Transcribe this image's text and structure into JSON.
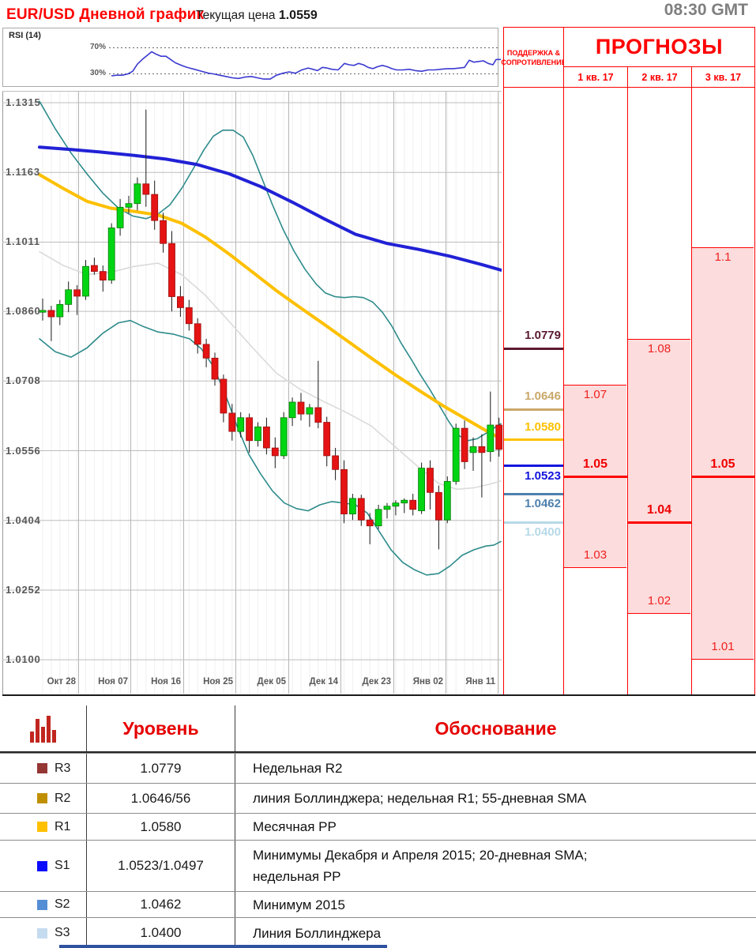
{
  "header": {
    "title": "EUR/USD Дневной график",
    "price_label": "Текущая цена",
    "price_value": "1.0559",
    "time": "08:30 GMT"
  },
  "rsi": {
    "label": "RSI (14)",
    "upper": "70%",
    "lower": "30%",
    "upper_value": 70,
    "lower_value": 30,
    "series": [
      [
        141,
        27
      ],
      [
        148,
        28
      ],
      [
        155,
        28
      ],
      [
        162,
        30
      ],
      [
        168,
        34
      ],
      [
        174,
        45
      ],
      [
        180,
        52
      ],
      [
        186,
        58
      ],
      [
        192,
        64
      ],
      [
        198,
        60
      ],
      [
        204,
        57
      ],
      [
        210,
        57
      ],
      [
        216,
        52
      ],
      [
        222,
        47
      ],
      [
        228,
        44
      ],
      [
        234,
        41
      ],
      [
        240,
        39
      ],
      [
        246,
        37
      ],
      [
        252,
        35
      ],
      [
        258,
        33
      ],
      [
        264,
        31
      ],
      [
        270,
        30
      ],
      [
        278,
        28
      ],
      [
        286,
        26
      ],
      [
        294,
        24
      ],
      [
        302,
        23
      ],
      [
        310,
        25
      ],
      [
        318,
        26
      ],
      [
        326,
        24
      ],
      [
        334,
        22
      ],
      [
        342,
        22
      ],
      [
        350,
        28
      ],
      [
        358,
        31
      ],
      [
        366,
        33
      ],
      [
        374,
        31
      ],
      [
        382,
        36
      ],
      [
        390,
        39
      ],
      [
        396,
        37
      ],
      [
        402,
        35
      ],
      [
        408,
        40
      ],
      [
        414,
        39
      ],
      [
        420,
        37
      ],
      [
        428,
        36
      ],
      [
        436,
        46
      ],
      [
        442,
        44
      ],
      [
        448,
        43
      ],
      [
        454,
        46
      ],
      [
        460,
        44
      ],
      [
        466,
        40
      ],
      [
        472,
        38
      ],
      [
        478,
        41
      ],
      [
        484,
        43
      ],
      [
        490,
        41
      ],
      [
        496,
        38
      ],
      [
        502,
        36
      ],
      [
        510,
        36
      ],
      [
        518,
        37
      ],
      [
        526,
        35
      ],
      [
        534,
        34
      ],
      [
        542,
        36
      ],
      [
        550,
        36
      ],
      [
        558,
        37
      ],
      [
        566,
        38
      ],
      [
        574,
        38
      ],
      [
        582,
        39
      ],
      [
        588,
        40
      ],
      [
        594,
        51
      ],
      [
        600,
        48
      ],
      [
        606,
        49
      ],
      [
        612,
        50
      ],
      [
        618,
        46
      ],
      [
        624,
        44
      ],
      [
        628,
        52
      ],
      [
        634,
        52
      ]
    ]
  },
  "chart_data": {
    "type": "candlestick",
    "title": "EUR/USD Дневной график",
    "ylim": [
      1.01,
      1.1315
    ],
    "y_ticks": [
      "1.1315",
      "1.1163",
      "1.1011",
      "1.0860",
      "1.0708",
      "1.0556",
      "1.0404",
      "1.0252",
      "1.0100"
    ],
    "x_ticks": [
      "Окт 28",
      "Ноя 07",
      "Ноя 16",
      "Ноя 25",
      "Дек 05",
      "Дек 14",
      "Дек 23",
      "Янв 02",
      "Янв 11"
    ],
    "candles": [
      [
        1.0858,
        1.0888,
        1.084,
        1.0862
      ],
      [
        1.0862,
        1.0872,
        1.0795,
        1.0848
      ],
      [
        1.0848,
        1.0885,
        1.083,
        1.0875
      ],
      [
        1.0875,
        1.0925,
        1.0858,
        1.0907
      ],
      [
        1.0907,
        1.0917,
        1.0852,
        1.0893
      ],
      [
        1.0893,
        1.0972,
        1.0885,
        1.0958
      ],
      [
        1.096,
        1.0977,
        1.094,
        1.0947
      ],
      [
        1.0947,
        1.096,
        1.0903,
        1.0928
      ],
      [
        1.0928,
        1.1052,
        1.092,
        1.1042
      ],
      [
        1.1042,
        1.1105,
        1.1025,
        1.1087
      ],
      [
        1.1087,
        1.1112,
        1.1073,
        1.1095
      ],
      [
        1.1095,
        1.1152,
        1.108,
        1.1138
      ],
      [
        1.1138,
        1.13,
        1.1088,
        1.1115
      ],
      [
        1.1115,
        1.1145,
        1.1038,
        1.1058
      ],
      [
        1.1058,
        1.1075,
        1.0988,
        1.1008
      ],
      [
        1.1008,
        1.1035,
        1.086,
        1.0892
      ],
      [
        1.0892,
        1.0915,
        1.0848,
        1.0868
      ],
      [
        1.0868,
        1.0885,
        1.0818,
        1.0833
      ],
      [
        1.0833,
        1.0845,
        1.0768,
        1.0788
      ],
      [
        1.0788,
        1.08,
        1.0738,
        1.0758
      ],
      [
        1.0758,
        1.077,
        1.0698,
        1.0712
      ],
      [
        1.0712,
        1.0722,
        1.0618,
        1.0638
      ],
      [
        1.0638,
        1.0658,
        1.0578,
        1.0598
      ],
      [
        1.0598,
        1.064,
        1.0585,
        1.0628
      ],
      [
        1.0628,
        1.0637,
        1.0552,
        1.0578
      ],
      [
        1.0578,
        1.0618,
        1.0565,
        1.0608
      ],
      [
        1.0608,
        1.0628,
        1.0548,
        1.0562
      ],
      [
        1.0562,
        1.0585,
        1.0518,
        1.0545
      ],
      [
        1.0545,
        1.064,
        1.0538,
        1.0628
      ],
      [
        1.0628,
        1.0672,
        1.061,
        1.0662
      ],
      [
        1.0662,
        1.0682,
        1.0622,
        1.0636
      ],
      [
        1.0636,
        1.0658,
        1.0608,
        1.065
      ],
      [
        1.065,
        1.0752,
        1.0605,
        1.0618
      ],
      [
        1.0618,
        1.063,
        1.0522,
        1.0545
      ],
      [
        1.0545,
        1.0562,
        1.0492,
        1.0515
      ],
      [
        1.0515,
        1.0535,
        1.0398,
        1.0418
      ],
      [
        1.0418,
        1.0462,
        1.0405,
        1.0452
      ],
      [
        1.0452,
        1.046,
        1.0392,
        1.0405
      ],
      [
        1.0405,
        1.042,
        1.0352,
        1.0392
      ],
      [
        1.0392,
        1.0438,
        1.0385,
        1.0428
      ],
      [
        1.0428,
        1.0442,
        1.0408,
        1.0435
      ],
      [
        1.0435,
        1.0448,
        1.0415,
        1.0442
      ],
      [
        1.0442,
        1.0452,
        1.042,
        1.0448
      ],
      [
        1.0448,
        1.0462,
        1.0415,
        1.0428
      ],
      [
        1.0425,
        1.053,
        1.0418,
        1.0518
      ],
      [
        1.0518,
        1.0535,
        1.0428,
        1.0465
      ],
      [
        1.0465,
        1.048,
        1.0341,
        1.0405
      ],
      [
        1.0405,
        1.05,
        1.0398,
        1.0489
      ],
      [
        1.0489,
        1.0615,
        1.0482,
        1.0605
      ],
      [
        1.0605,
        1.0622,
        1.0516,
        1.0532
      ],
      [
        1.0552,
        1.0585,
        1.0512,
        1.0565
      ],
      [
        1.0565,
        1.0592,
        1.0454,
        1.0552
      ],
      [
        1.0554,
        1.0685,
        1.0532,
        1.0612
      ],
      [
        1.0612,
        1.0628,
        1.0543,
        1.0559
      ]
    ],
    "overlays": {
      "sma_blue": [
        [
          50,
          1.1218
        ],
        [
          90,
          1.1213
        ],
        [
          130,
          1.1207
        ],
        [
          170,
          1.12
        ],
        [
          210,
          1.1192
        ],
        [
          250,
          1.118
        ],
        [
          290,
          1.116
        ],
        [
          330,
          1.1132
        ],
        [
          370,
          1.1098
        ],
        [
          410,
          1.1062
        ],
        [
          450,
          1.1028
        ],
        [
          490,
          1.1008
        ],
        [
          530,
          1.0995
        ],
        [
          570,
          1.098
        ],
        [
          610,
          1.0962
        ],
        [
          634,
          1.095
        ]
      ],
      "sma_yellow": [
        [
          50,
          1.1158
        ],
        [
          80,
          1.1128
        ],
        [
          110,
          1.11
        ],
        [
          140,
          1.1085
        ],
        [
          170,
          1.1078
        ],
        [
          200,
          1.107
        ],
        [
          230,
          1.1052
        ],
        [
          260,
          1.1022
        ],
        [
          290,
          1.0985
        ],
        [
          320,
          1.0945
        ],
        [
          350,
          1.0905
        ],
        [
          380,
          1.0868
        ],
        [
          410,
          1.0832
        ],
        [
          440,
          1.0795
        ],
        [
          470,
          1.0758
        ],
        [
          500,
          1.0722
        ],
        [
          530,
          1.0688
        ],
        [
          560,
          1.0655
        ],
        [
          590,
          1.0625
        ],
        [
          615,
          1.06
        ],
        [
          634,
          1.0582
        ]
      ],
      "sma_gray": [
        [
          50,
          1.099
        ],
        [
          80,
          1.096
        ],
        [
          110,
          1.094
        ],
        [
          140,
          1.0945
        ],
        [
          170,
          1.0958
        ],
        [
          200,
          1.0965
        ],
        [
          230,
          1.094
        ],
        [
          260,
          1.0895
        ],
        [
          290,
          1.0838
        ],
        [
          320,
          1.078
        ],
        [
          350,
          1.0725
        ],
        [
          380,
          1.069
        ],
        [
          410,
          1.0663
        ],
        [
          440,
          1.0638
        ],
        [
          470,
          1.061
        ],
        [
          500,
          1.0565
        ],
        [
          530,
          1.052
        ],
        [
          555,
          1.0485
        ],
        [
          578,
          1.0472
        ],
        [
          600,
          1.0475
        ],
        [
          620,
          1.0483
        ],
        [
          634,
          1.049
        ]
      ],
      "boll_upper": [
        [
          50,
          1.1318
        ],
        [
          70,
          1.1258
        ],
        [
          90,
          1.1205
        ],
        [
          110,
          1.116
        ],
        [
          130,
          1.1118
        ],
        [
          150,
          1.1085
        ],
        [
          168,
          1.1068
        ],
        [
          185,
          1.1062
        ],
        [
          200,
          1.1072
        ],
        [
          215,
          1.1092
        ],
        [
          230,
          1.1128
        ],
        [
          245,
          1.1172
        ],
        [
          258,
          1.1212
        ],
        [
          270,
          1.1242
        ],
        [
          282,
          1.1255
        ],
        [
          295,
          1.1255
        ],
        [
          308,
          1.124
        ],
        [
          320,
          1.12
        ],
        [
          332,
          1.1148
        ],
        [
          345,
          1.1092
        ],
        [
          358,
          1.104
        ],
        [
          372,
          1.0992
        ],
        [
          386,
          1.0952
        ],
        [
          400,
          1.092
        ],
        [
          412,
          1.09
        ],
        [
          424,
          1.0892
        ],
        [
          436,
          1.089
        ],
        [
          448,
          1.0892
        ],
        [
          460,
          1.089
        ],
        [
          472,
          1.088
        ],
        [
          484,
          1.0858
        ],
        [
          496,
          1.0828
        ],
        [
          508,
          1.079
        ],
        [
          520,
          1.0757
        ],
        [
          532,
          1.0722
        ],
        [
          544,
          1.069
        ],
        [
          556,
          1.0655
        ],
        [
          568,
          1.062
        ],
        [
          580,
          1.059
        ],
        [
          592,
          1.0578
        ],
        [
          604,
          1.0582
        ],
        [
          616,
          1.0595
        ],
        [
          625,
          1.0605
        ],
        [
          634,
          1.0615
        ]
      ],
      "boll_lower": [
        [
          50,
          1.08
        ],
        [
          70,
          1.0772
        ],
        [
          90,
          1.076
        ],
        [
          110,
          1.078
        ],
        [
          130,
          1.0812
        ],
        [
          150,
          1.0835
        ],
        [
          165,
          1.084
        ],
        [
          180,
          1.0828
        ],
        [
          200,
          1.0815
        ],
        [
          220,
          1.081
        ],
        [
          240,
          1.08
        ],
        [
          255,
          1.0778
        ],
        [
          270,
          1.074
        ],
        [
          285,
          1.068
        ],
        [
          300,
          1.061
        ],
        [
          315,
          1.0548
        ],
        [
          330,
          1.0505
        ],
        [
          345,
          1.0468
        ],
        [
          360,
          1.0442
        ],
        [
          375,
          1.043
        ],
        [
          390,
          1.0425
        ],
        [
          405,
          1.0438
        ],
        [
          420,
          1.0445
        ],
        [
          435,
          1.0442
        ],
        [
          450,
          1.0438
        ],
        [
          465,
          1.042
        ],
        [
          480,
          1.038
        ],
        [
          495,
          1.034
        ],
        [
          510,
          1.0312
        ],
        [
          525,
          1.0296
        ],
        [
          540,
          1.0285
        ],
        [
          555,
          1.0288
        ],
        [
          570,
          1.0305
        ],
        [
          585,
          1.0328
        ],
        [
          600,
          1.034
        ],
        [
          615,
          1.0348
        ],
        [
          625,
          1.035
        ],
        [
          634,
          1.0358
        ]
      ]
    },
    "colors": {
      "up": "#00d513",
      "down": "#e51313",
      "up_border": "#077a07",
      "down_border": "#9c0f0f",
      "wick": "#1a1a1a",
      "boll": "#2e8b8b",
      "sma_blue": "#2121d6",
      "sma_yellow": "#fec000",
      "sma_gray": "#dadada",
      "rsi": "#3a3ad0",
      "grid": "#bdbdbd",
      "grid_minor": "#f0f0f0",
      "grid_major_v": "#b5b5b5"
    }
  },
  "sr_panel": {
    "header": "ПОДДЕРЖКА & СОПРОТИВЛЕНИЕ",
    "levels": [
      {
        "label": "1.0779",
        "value": 1.0779,
        "color": "#5b1a32",
        "label_side": "above"
      },
      {
        "label": "1.0646",
        "value": 1.0646,
        "color": "#c9a86a",
        "label_side": "above"
      },
      {
        "label": "1.0580",
        "value": 1.058,
        "color": "#fec101",
        "label_side": "above"
      },
      {
        "label": "1.0523",
        "value": 1.0523,
        "color": "#1414dd",
        "label_side": "below"
      },
      {
        "label": "1.0462",
        "value": 1.0462,
        "color": "#4f81ad",
        "label_side": "below"
      },
      {
        "label": "1.0400",
        "value": 1.04,
        "color": "#b7d9e8",
        "label_side": "below"
      }
    ]
  },
  "forecasts": {
    "title": "ПРОГНОЗЫ",
    "band_fill": "#fcdcdc",
    "accent": "#ff0000",
    "columns": [
      {
        "quarter": "1 кв. 17",
        "high": 1.07,
        "low": 1.03,
        "target": 1.05,
        "high_label": "1.07",
        "low_label": "1.03",
        "target_label": "1.05"
      },
      {
        "quarter": "2 кв. 17",
        "high": 1.08,
        "low": 1.02,
        "target": 1.04,
        "high_label": "1.08",
        "low_label": "1.02",
        "target_label": "1.04"
      },
      {
        "quarter": "3 кв. 17",
        "high": 1.1,
        "low": 1.01,
        "target": 1.05,
        "high_label": "1.1",
        "low_label": "1.01",
        "target_label": "1.05"
      }
    ]
  },
  "table": {
    "level_header": "Уровень",
    "reason_header": "Обоснование",
    "rows": [
      {
        "key": "R3",
        "color": "#943634",
        "level": "1.0779",
        "reason": "Недельная R2"
      },
      {
        "key": "R2",
        "color": "#bf8f00",
        "level": "1.0646/56",
        "reason": "линия Боллинджера; недельная R1; 55-дневная SMA"
      },
      {
        "key": "R1",
        "color": "#ffc000",
        "level": "1.0580",
        "reason": "Месячная PP"
      },
      {
        "key": "S1",
        "color": "#0a0aff",
        "level": "1.0523/1.0497",
        "reason": "Минимумы Декабря и Апреля 2015; 20-дневная SMA; недельная PP"
      },
      {
        "key": "S2",
        "color": "#558ed5",
        "level": "1.0462",
        "reason": "Минимум 2015"
      },
      {
        "key": "S3",
        "color": "#c5dbf0",
        "level": "1.0400",
        "reason": "Линия Боллинджера"
      }
    ]
  },
  "footer": {
    "bar_color": "#2e52a0"
  }
}
